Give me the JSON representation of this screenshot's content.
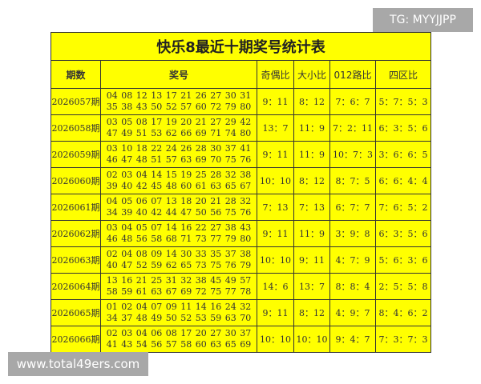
{
  "title": "快乐8最近十期奖号统计表",
  "headers": [
    "期数",
    "奖号",
    "奇偶比",
    "大小比",
    "012路比",
    "四区比"
  ],
  "rows": [
    {
      "period": "2026057期",
      "line1": "04 08 12 13 17 21 26 27 30 31",
      "line2": "35 38 43 50 52 57 60 72 79 80",
      "odd_even": "9：11",
      "big_small": "8：12",
      "road012": "7：6：7",
      "zone": "5：7：5：3"
    },
    {
      "period": "2026058期",
      "line1": "03 05 08 17 19 20 21 27 29 42",
      "line2": "47 49 51 53 62 66 69 71 74 80",
      "odd_even": "13：7",
      "big_small": "11：9",
      "road012": "7：2：11",
      "zone": "6：3：5：6"
    },
    {
      "period": "2026059期",
      "line1": "03 10 18 22 24 26 28 30 37 41",
      "line2": "46 47 48 51 57 63 69 70 75 76",
      "odd_even": "9：11",
      "big_small": "11：9",
      "road012": "10：7：3",
      "zone": "3：6：6：5"
    },
    {
      "period": "2026060期",
      "line1": "02 03 04 14 15 19 25 28 32 38",
      "line2": "39 40 42 45 48 60 61 63 65 67",
      "odd_even": "10：10",
      "big_small": "8：12",
      "road012": "8：7：5",
      "zone": "6：6：4：4"
    },
    {
      "period": "2026061期",
      "line1": "04 05 06 07 13 18 20 21 28 32",
      "line2": "34 39 40 42 44 47 50 56 75 76",
      "odd_even": "7：13",
      "big_small": "7：13",
      "road012": "6：7：7",
      "zone": "7：6：5：2"
    },
    {
      "period": "2026062期",
      "line1": "03 04 05 07 14 16 22 27 38 43",
      "line2": "46 48 56 58 68 71 73 77 79 80",
      "odd_even": "9：11",
      "big_small": "11：9",
      "road012": "3：9：8",
      "zone": "6：3：5：6"
    },
    {
      "period": "2026063期",
      "line1": "02 04 08 09 14 30 33 35 37 38",
      "line2": "40 47 52 59 62 65 73 75 76 79",
      "odd_even": "10：10",
      "big_small": "9：11",
      "road012": "4：7：9",
      "zone": "5：6：3：6"
    },
    {
      "period": "2026064期",
      "line1": "13 16 21 25 31 32 38 45 49 57",
      "line2": "58 59 61 63 67 69 72 75 77 78",
      "odd_even": "14：6",
      "big_small": "13：7",
      "road012": "8：8：4",
      "zone": "2：5：5：8"
    },
    {
      "period": "2026065期",
      "line1": "01 02 04 07 09 11 14 16 24 32",
      "line2": "34 37 48 49 50 52 53 59 63 70",
      "odd_even": "9：11",
      "big_small": "8：12",
      "road012": "4：9：7",
      "zone": "8：4：6：2"
    },
    {
      "period": "2026066期",
      "line1": "02 03 04 06 08 17 20 27 30 37",
      "line2": "41 43 54 56 57 58 60 63 65 69",
      "odd_even": "10：10",
      "big_small": "10：10",
      "road012": "9：4：7",
      "zone": "7：3：7：3"
    }
  ],
  "watermarks": {
    "top": "TG: MYYJJPP",
    "bottom": "www.total49ers.com"
  },
  "colors": {
    "table_bg": "#ffff00",
    "border": "#333333",
    "badge_bg": "#a8a8a8"
  }
}
